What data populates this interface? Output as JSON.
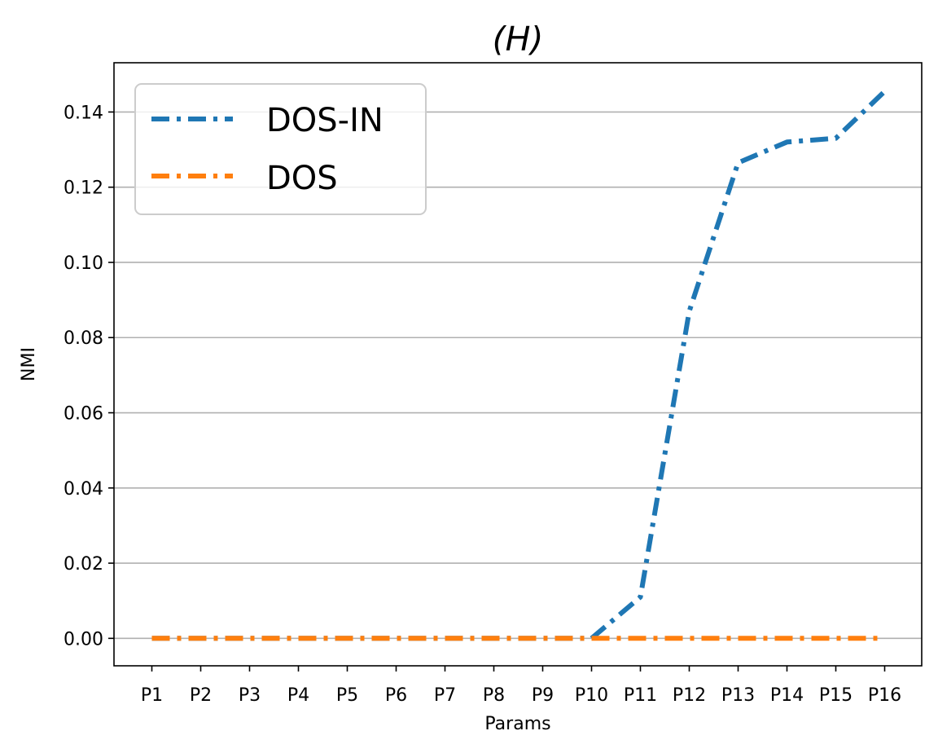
{
  "chart_data": {
    "type": "line",
    "title": "(H)",
    "xlabel": "Params",
    "ylabel": "NMI",
    "categories": [
      "P1",
      "P2",
      "P3",
      "P4",
      "P5",
      "P6",
      "P7",
      "P8",
      "P9",
      "P10",
      "P11",
      "P12",
      "P13",
      "P14",
      "P15",
      "P16"
    ],
    "ylim": [
      -0.0073,
      0.1531
    ],
    "yticks": [
      0.0,
      0.02,
      0.04,
      0.06,
      0.08,
      0.1,
      0.12,
      0.14
    ],
    "ytick_labels": [
      "0.00",
      "0.02",
      "0.04",
      "0.06",
      "0.08",
      "0.10",
      "0.12",
      "0.14"
    ],
    "grid": "horizontal",
    "legend_position": "top-left",
    "series": [
      {
        "name": "DOS-IN",
        "color": "#1f77b4",
        "linestyle": "dash-dot",
        "values": [
          0,
          0,
          0,
          0,
          0,
          0,
          0,
          0,
          0,
          0,
          0.011,
          0.087,
          0.1265,
          0.132,
          0.133,
          0.1455
        ]
      },
      {
        "name": "DOS",
        "color": "#ff7f0e",
        "linestyle": "dash-dot",
        "values": [
          0,
          0,
          0,
          0,
          0,
          0,
          0,
          0,
          0,
          0,
          0,
          0,
          0,
          0,
          0,
          0
        ]
      }
    ]
  }
}
